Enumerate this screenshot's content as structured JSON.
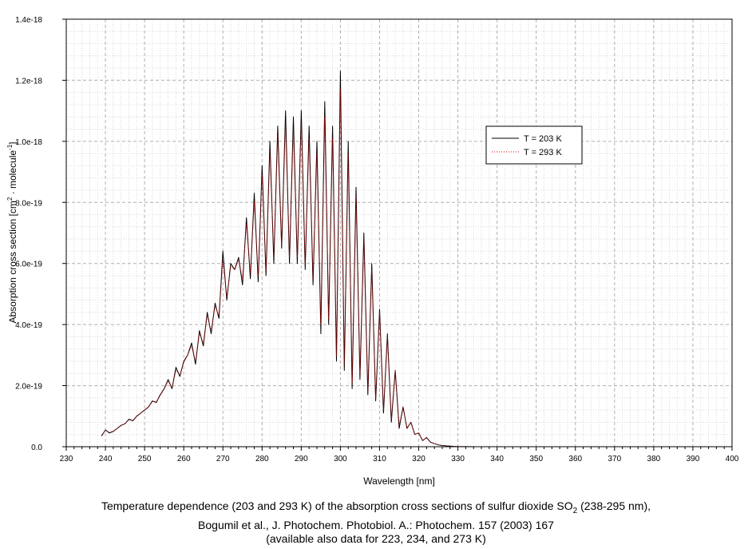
{
  "chart_data": {
    "type": "line",
    "xlabel": "Wavelength [nm]",
    "ylabel_prefix": "Absorption cross section [cm",
    "ylabel_sup1": "2",
    "ylabel_mid": " · molecule",
    "ylabel_sup2": "-1",
    "ylabel_suffix": "]",
    "xlim": [
      230,
      400
    ],
    "ylim": [
      0,
      1.4e-18
    ],
    "x_ticks": [
      "230",
      "240",
      "250",
      "260",
      "270",
      "280",
      "290",
      "300",
      "310",
      "320",
      "330",
      "340",
      "350",
      "360",
      "370",
      "380",
      "390",
      "400"
    ],
    "y_ticks": [
      "0.0",
      "2.0e-19",
      "4.0e-19",
      "6.0e-19",
      "8.0e-19",
      "1.0e-18",
      "1.2e-18",
      "1.4e-18"
    ],
    "grid": true,
    "legend_position": "top-right",
    "series": [
      {
        "name": "T = 203 K",
        "color": "#000000",
        "style": "solid",
        "x": [
          239,
          240,
          241,
          242,
          243,
          244,
          245,
          246,
          247,
          248,
          249,
          250,
          251,
          252,
          253,
          254,
          255,
          256,
          257,
          258,
          259,
          260,
          261,
          262,
          263,
          264,
          265,
          266,
          267,
          268,
          269,
          270,
          271,
          272,
          273,
          274,
          275,
          276,
          277,
          278,
          279,
          280,
          281,
          282,
          283,
          284,
          285,
          286,
          287,
          288,
          289,
          290,
          291,
          292,
          293,
          294,
          295,
          296,
          297,
          298,
          299,
          300,
          301,
          302,
          303,
          304,
          305,
          306,
          307,
          308,
          309,
          310,
          311,
          312,
          313,
          314,
          315,
          316,
          317,
          318,
          319,
          320,
          321,
          322,
          323,
          324,
          325,
          326,
          327,
          328,
          329,
          330,
          332,
          335,
          340,
          345,
          350,
          360,
          370,
          380,
          390,
          395
        ],
        "y": [
          3.5e-20,
          5.5e-20,
          4.5e-20,
          5e-20,
          6e-20,
          7e-20,
          7.5e-20,
          9e-20,
          8.5e-20,
          1e-19,
          1.1e-19,
          1.2e-19,
          1.3e-19,
          1.5e-19,
          1.45e-19,
          1.7e-19,
          1.9e-19,
          2.2e-19,
          1.9e-19,
          2.6e-19,
          2.3e-19,
          2.8e-19,
          3e-19,
          3.4e-19,
          2.7e-19,
          3.8e-19,
          3.3e-19,
          4.4e-19,
          3.7e-19,
          4.7e-19,
          4.2e-19,
          6.4e-19,
          4.8e-19,
          6e-19,
          5.8e-19,
          6.2e-19,
          5.3e-19,
          7.5e-19,
          5.5e-19,
          8.3e-19,
          5.4e-19,
          9.2e-19,
          5.6e-19,
          1e-18,
          6e-19,
          1.05e-18,
          6.5e-19,
          1.1e-18,
          6e-19,
          1.08e-18,
          6e-19,
          1.1e-18,
          5.8e-19,
          1.05e-18,
          5.3e-19,
          1e-18,
          3.7e-19,
          1.13e-18,
          4e-19,
          1.05e-18,
          2.8e-19,
          1.23e-18,
          2.5e-19,
          1e-18,
          1.9e-19,
          8.5e-19,
          2.2e-19,
          7e-19,
          1.7e-19,
          6e-19,
          1.5e-19,
          4.5e-19,
          1.1e-19,
          3.7e-19,
          8e-20,
          2.5e-19,
          6e-20,
          1.3e-19,
          6e-20,
          8e-20,
          4e-20,
          4.5e-20,
          2e-20,
          3e-20,
          1.5e-20,
          1e-20,
          6e-21,
          4e-21,
          3e-21,
          2e-21,
          1e-21,
          5e-22,
          2e-22,
          1e-22,
          0,
          0,
          0,
          0,
          0,
          0,
          0,
          0
        ]
      },
      {
        "name": "T = 293 K",
        "color": "#cc0000",
        "style": "dotted",
        "x": [
          239,
          240,
          241,
          242,
          243,
          244,
          245,
          246,
          247,
          248,
          249,
          250,
          251,
          252,
          253,
          254,
          255,
          256,
          257,
          258,
          259,
          260,
          261,
          262,
          263,
          264,
          265,
          266,
          267,
          268,
          269,
          270,
          271,
          272,
          273,
          274,
          275,
          276,
          277,
          278,
          279,
          280,
          281,
          282,
          283,
          284,
          285,
          286,
          287,
          288,
          289,
          290,
          291,
          292,
          293,
          294,
          295,
          296,
          297,
          298,
          299,
          300,
          301,
          302,
          303,
          304,
          305,
          306,
          307,
          308,
          309,
          310,
          311,
          312,
          313,
          314,
          315,
          316,
          317,
          318,
          319,
          320,
          321,
          322,
          323,
          324,
          325,
          326,
          327,
          328,
          329,
          330,
          332,
          335,
          340,
          345,
          350,
          360,
          370,
          380,
          390,
          395
        ],
        "y": [
          3.8e-20,
          5.3e-20,
          4.7e-20,
          5.1e-20,
          6e-20,
          7e-20,
          7.6e-20,
          8.8e-20,
          8.6e-20,
          1e-19,
          1.1e-19,
          1.2e-19,
          1.3e-19,
          1.48e-19,
          1.47e-19,
          1.68e-19,
          1.88e-19,
          2.15e-19,
          1.95e-19,
          2.5e-19,
          2.35e-19,
          2.75e-19,
          3e-19,
          3.3e-19,
          2.8e-19,
          3.7e-19,
          3.4e-19,
          4.3e-19,
          3.8e-19,
          4.6e-19,
          4.3e-19,
          6.1e-19,
          4.9e-19,
          5.9e-19,
          5.8e-19,
          6.1e-19,
          5.5e-19,
          7.3e-19,
          5.7e-19,
          8e-19,
          5.6e-19,
          8.9e-19,
          5.8e-19,
          9.7e-19,
          6.2e-19,
          1.02e-18,
          6.6e-19,
          1.06e-18,
          6.2e-19,
          1.04e-18,
          6.2e-19,
          1.06e-18,
          6e-19,
          1.01e-18,
          5.5e-19,
          9.6e-19,
          4e-19,
          1.08e-18,
          4.2e-19,
          1.01e-18,
          3e-19,
          1.17e-18,
          2.7e-19,
          9.6e-19,
          2.1e-19,
          8.2e-19,
          2.4e-19,
          6.8e-19,
          1.8e-19,
          5.8e-19,
          1.6e-19,
          4.4e-19,
          1.2e-19,
          3.6e-19,
          9e-20,
          2.5e-19,
          7e-20,
          1.3e-19,
          6e-20,
          8e-20,
          4e-20,
          4.5e-20,
          2e-20,
          3e-20,
          1.5e-20,
          1e-20,
          6e-21,
          4e-21,
          3e-21,
          2e-21,
          1e-21,
          5e-22,
          2e-22,
          1e-22,
          0,
          0,
          0,
          0,
          0,
          0,
          0,
          0
        ]
      }
    ]
  },
  "caption": {
    "line1_pre": "Temperature dependence (203 and 293 K) of the absorption cross sections of sulfur dioxide SO",
    "line1_sub": "2",
    "line1_post": " (238-295 nm),",
    "line2": "Bogumil et al., J. Photochem. Photobiol. A.: Photochem. 157 (2003) 167",
    "line3": "(available also data for 223, 234, and 273 K)"
  }
}
